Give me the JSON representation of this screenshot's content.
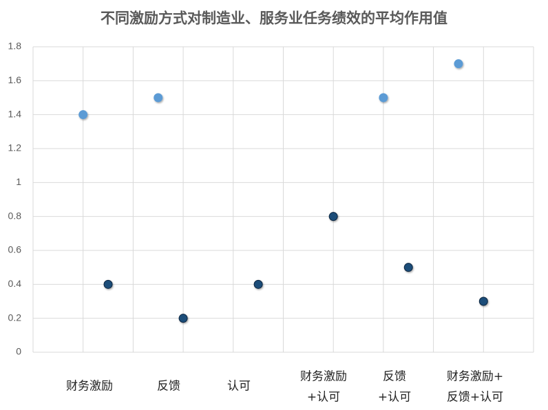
{
  "chart_data": {
    "type": "scatter",
    "title": "不同激励方式对制造业、服务业任务绩效的平均作用值",
    "category_labels": [
      [
        "财务激励"
      ],
      [
        "反馈"
      ],
      [
        "认可"
      ],
      [
        "财务激励",
        "+认可"
      ],
      [
        "反馈",
        "+认可"
      ],
      [
        "财务激励+",
        "反馈+认可"
      ]
    ],
    "series": [
      {
        "color": "#5b9bd5",
        "x": [
          1,
          2.5,
          7,
          8.5
        ],
        "values": [
          1.4,
          1.5,
          1.5,
          1.7
        ]
      },
      {
        "color": "#1f4e79",
        "x": [
          1.5,
          3,
          4.5,
          6,
          7.5,
          9
        ],
        "values": [
          0.4,
          0.2,
          0.4,
          0.8,
          0.5,
          0.3
        ]
      }
    ],
    "xlim": [
      0,
      10
    ],
    "xticks": [
      0,
      1,
      2,
      3,
      4,
      5,
      6,
      7,
      8,
      9,
      10
    ],
    "ylim": [
      0,
      1.8
    ],
    "yticks": [
      0,
      0.2,
      0.4,
      0.6,
      0.8,
      1,
      1.2,
      1.4,
      1.6,
      1.8
    ],
    "grid": true
  }
}
